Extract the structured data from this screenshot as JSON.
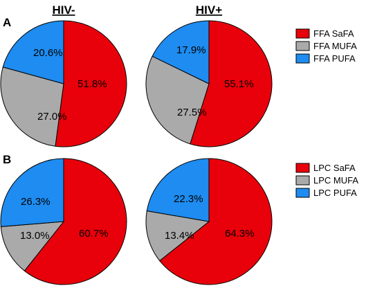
{
  "colors": {
    "SaFA": "#e8000b",
    "MUFA": "#aaaaaa",
    "PUFA": "#1e8cf0",
    "outline": "#000000"
  },
  "column_titles": [
    "HIV-",
    "HIV+"
  ],
  "panels": [
    {
      "letter": "A"
    },
    {
      "letter": "B"
    }
  ],
  "chart_data": [
    {
      "type": "pie",
      "panel": "A",
      "column": "HIV-",
      "categories": [
        "FFA SaFA",
        "FFA MUFA",
        "FFA PUFA"
      ],
      "values": [
        51.8,
        27.0,
        20.6
      ],
      "labels": [
        "51.8%",
        "27.0%",
        "20.6%"
      ]
    },
    {
      "type": "pie",
      "panel": "A",
      "column": "HIV+",
      "categories": [
        "FFA SaFA",
        "FFA MUFA",
        "FFA PUFA"
      ],
      "values": [
        55.1,
        27.5,
        17.9
      ],
      "labels": [
        "55.1%",
        "27.5%",
        "17.9%"
      ]
    },
    {
      "type": "pie",
      "panel": "B",
      "column": "HIV-",
      "categories": [
        "LPC SaFA",
        "LPC MUFA",
        "LPC PUFA"
      ],
      "values": [
        60.7,
        13.0,
        26.3
      ],
      "labels": [
        "60.7%",
        "13.0%",
        "26.3%"
      ]
    },
    {
      "type": "pie",
      "panel": "B",
      "column": "HIV+",
      "categories": [
        "LPC SaFA",
        "LPC MUFA",
        "LPC PUFA"
      ],
      "values": [
        64.3,
        13.4,
        22.3
      ],
      "labels": [
        "64.3%",
        "13.4%",
        "22.3%"
      ]
    }
  ],
  "legends": [
    {
      "panel": "A",
      "entries": [
        "FFA SaFA",
        "FFA MUFA",
        "FFA PUFA"
      ]
    },
    {
      "panel": "B",
      "entries": [
        "LPC SaFA",
        "LPC MUFA",
        "LPC PUFA"
      ]
    }
  ]
}
